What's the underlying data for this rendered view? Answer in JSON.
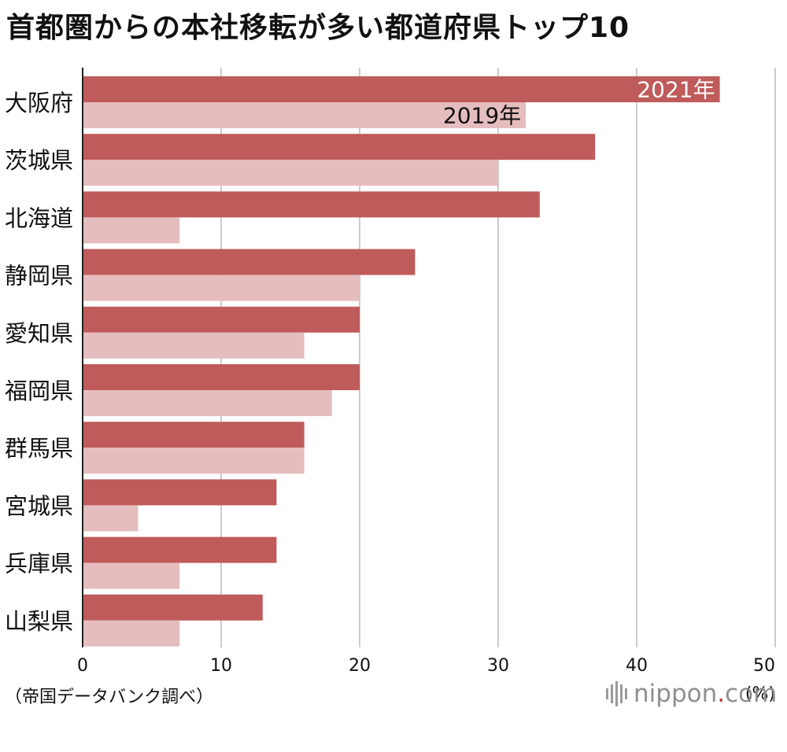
{
  "title": "首都圏からの本社移転が多い都道府県トップ10",
  "source": "（帝国データバンク調べ）",
  "brand": {
    "name": "nippon",
    "dot": ".",
    "domain": "com",
    "icon": "nippon-logo-bars-icon"
  },
  "colors": {
    "series_2021": "#bf5b5a",
    "series_2019": "#e6bdbe",
    "grid": "#cccccc",
    "axis": "#222222"
  },
  "chart_data": {
    "type": "bar",
    "orientation": "horizontal",
    "title": "首都圏からの本社移転が多い都道府県トップ10",
    "categories": [
      "大阪府",
      "茨城県",
      "北海道",
      "静岡県",
      "愛知県",
      "福岡県",
      "群馬県",
      "宮城県",
      "兵庫県",
      "山梨県"
    ],
    "series": [
      {
        "name": "2021年",
        "values": [
          46,
          37,
          33,
          24,
          20,
          20,
          16,
          14,
          14,
          13
        ]
      },
      {
        "name": "2019年",
        "values": [
          32,
          30,
          7,
          20,
          16,
          18,
          16,
          4,
          7,
          7
        ]
      }
    ],
    "xlim": [
      0,
      50
    ],
    "xticks": [
      0,
      10,
      20,
      30,
      40,
      50
    ],
    "xunit": "(%)",
    "grid": true,
    "legend": "inline labels on first category bars"
  }
}
